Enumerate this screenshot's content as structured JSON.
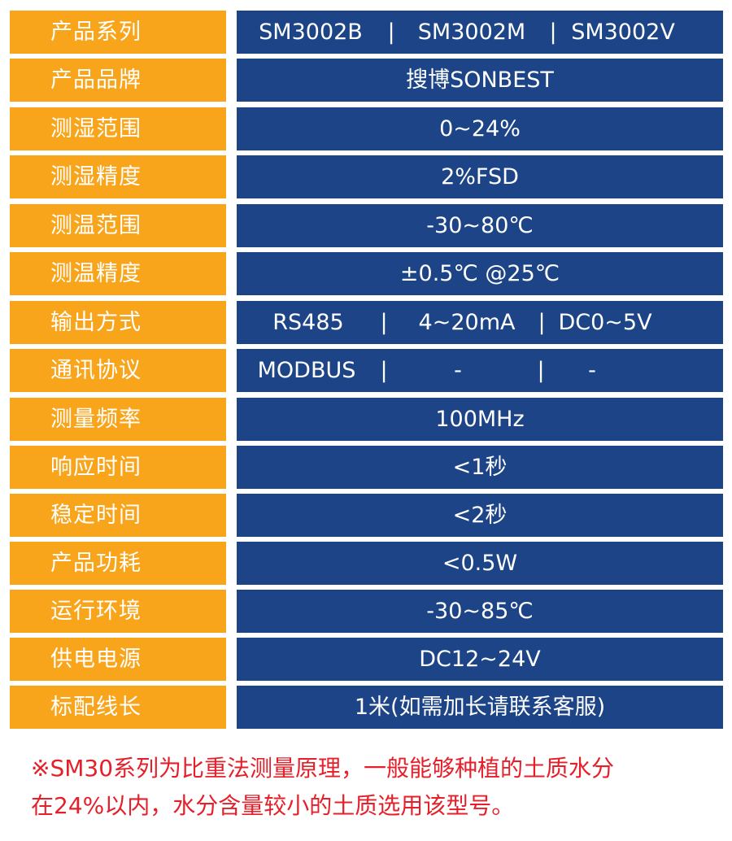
{
  "rows": [
    {
      "label": "产品系列",
      "values": [
        "SM3002B",
        "|",
        "SM3002M",
        "|",
        "SM3002V"
      ]
    },
    {
      "label": "产品品牌",
      "value": "搜博SONBEST"
    },
    {
      "label": "测湿范围",
      "value": "0~24%"
    },
    {
      "label": "测湿精度",
      "value": "2%FSD"
    },
    {
      "label": "测温范围",
      "value": "-30~80℃"
    },
    {
      "label": "测温精度",
      "value": "±0.5℃ @25℃"
    },
    {
      "label": "输出方式",
      "values": [
        "RS485",
        "|",
        "4~20mA",
        "|",
        "DC0~5V"
      ]
    },
    {
      "label": "通讯协议",
      "values": [
        "MODBUS",
        "|",
        "-",
        "|",
        "-"
      ]
    },
    {
      "label": "测量频率",
      "value": "100MHz"
    },
    {
      "label": "响应时间",
      "value": "<1秒"
    },
    {
      "label": "稳定时间",
      "value": "<2秒"
    },
    {
      "label": "产品功耗",
      "value": "<0.5W"
    },
    {
      "label": "运行环境",
      "value": "-30~85℃"
    },
    {
      "label": "供电电源",
      "value": "DC12~24V"
    },
    {
      "label": "标配线长",
      "value": "1米(如需加长请联系客服)"
    }
  ],
  "note": {
    "line1": "※SM30系列为比重法测量原理，一般能够种植的土质水分",
    "line2": "在24%以内，水分含量较小的土质选用该型号。"
  },
  "colors": {
    "label_bg": "#f8a51c",
    "value_bg": "#1c4486",
    "note_text": "#e5202a"
  }
}
